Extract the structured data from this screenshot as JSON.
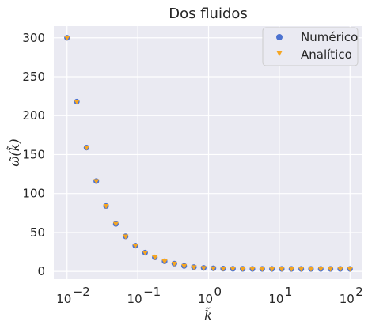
{
  "chart_data": {
    "type": "scatter",
    "title": "Dos fluidos",
    "xlabel": "k̃",
    "ylabel": "ω̃(k̃)",
    "xscale": "log",
    "xlim": [
      0.0065,
      150
    ],
    "ylim": [
      -10,
      315
    ],
    "grid": true,
    "legend_position": "top-right",
    "x_ticks": [
      {
        "value": 0.01,
        "base": "10",
        "exp": "−2"
      },
      {
        "value": 0.1,
        "base": "10",
        "exp": "−1"
      },
      {
        "value": 1,
        "base": "10",
        "exp": "0"
      },
      {
        "value": 10,
        "base": "10",
        "exp": "1"
      },
      {
        "value": 100,
        "base": "10",
        "exp": "2"
      }
    ],
    "y_ticks": [
      "0",
      "50",
      "100",
      "150",
      "200",
      "250",
      "300"
    ],
    "x": [
      0.01,
      0.01374,
      0.01887,
      0.02593,
      0.03562,
      0.04894,
      0.06723,
      0.09237,
      0.1269,
      0.1743,
      0.2395,
      0.329,
      0.452,
      0.621,
      0.8532,
      1.172,
      1.61,
      2.212,
      3.039,
      4.175,
      5.736,
      7.88,
      10.83,
      14.87,
      20.43,
      28.07,
      38.57,
      52.98,
      72.79,
      100.0
    ],
    "series": [
      {
        "name": "Numérico",
        "color": "#4c72d0",
        "marker": "circle",
        "values": [
          300,
          218,
          159,
          116,
          84,
          61,
          45,
          33,
          24,
          18,
          13,
          10,
          7,
          5.5,
          4.5,
          4,
          3.6,
          3.4,
          3.3,
          3.2,
          3.2,
          3.2,
          3.2,
          3.2,
          3.2,
          3.2,
          3.2,
          3.2,
          3.2,
          3.2
        ]
      },
      {
        "name": "Analítico",
        "color": "#f5a623",
        "marker": "triangle-down",
        "values": [
          300,
          218,
          159,
          116,
          84,
          61,
          45,
          33,
          24,
          18,
          13,
          10,
          7,
          5.5,
          4.5,
          4,
          3.6,
          3.4,
          3.3,
          3.2,
          3.2,
          3.2,
          3.2,
          3.2,
          3.2,
          3.2,
          3.2,
          3.2,
          3.2,
          3.2
        ]
      }
    ],
    "colors": {
      "plot_background": "#eaeaf2",
      "grid": "#ffffff",
      "legend_background": "#eaeaf2",
      "legend_border": "#cccccc"
    }
  }
}
